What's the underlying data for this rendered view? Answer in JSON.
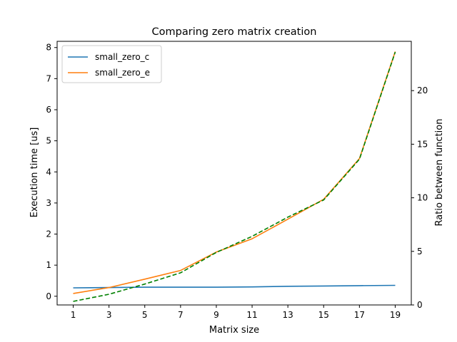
{
  "chart_data": {
    "type": "line",
    "title": "Comparing zero matrix creation",
    "xlabel": "Matrix size",
    "ylabel": "Execution time [us]",
    "y2label": "Ratio between function",
    "x": [
      1,
      3,
      5,
      7,
      9,
      11,
      13,
      15,
      17,
      19
    ],
    "xticks": [
      1,
      3,
      5,
      7,
      9,
      11,
      13,
      15,
      17,
      19
    ],
    "yticks": [
      0,
      1,
      2,
      3,
      4,
      5,
      6,
      7,
      8
    ],
    "y2ticks": [
      0,
      5,
      10,
      15,
      20
    ],
    "ylim": [
      -0.28,
      8.2
    ],
    "y2lim": [
      0,
      24.6
    ],
    "grid": false,
    "legend_position": "top-left",
    "series": [
      {
        "name": "small_zero_c",
        "axis": "left",
        "color": "#1f77b4",
        "style": "solid",
        "values": [
          0.27,
          0.28,
          0.29,
          0.29,
          0.29,
          0.3,
          0.32,
          0.33,
          0.34,
          0.35
        ]
      },
      {
        "name": "small_zero_e",
        "axis": "left",
        "color": "#ff7f0e",
        "style": "solid",
        "values": [
          0.09,
          0.28,
          0.55,
          0.83,
          1.42,
          1.85,
          2.48,
          3.12,
          4.43,
          7.87
        ]
      },
      {
        "axis": "right",
        "color": "#008000",
        "style": "dashed",
        "values": [
          0.33,
          1.0,
          1.95,
          3.0,
          4.9,
          6.4,
          8.2,
          9.8,
          13.6,
          23.6
        ]
      }
    ]
  }
}
